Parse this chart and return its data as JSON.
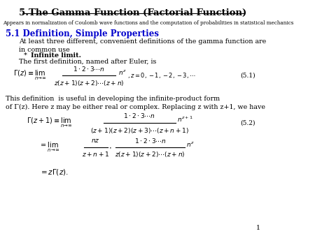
{
  "title": "5.The Gamma Function (Factorial Function)",
  "subtitle": "Appears in normalization of Coulomb wave functions and the computation of probabilities in statistical mechanics",
  "section": "5.1 Definition, Simple Properties",
  "para1": "At least three different, convenient definitions of the gamma function are\nin common use",
  "bullet_star": "*  ",
  "bullet_text": "Infinite limit.",
  "para2": "The first definition, named after Euler, is",
  "eq1_label": "(5.1)",
  "eq2_label": "(5.2)",
  "para3": "This definition  is useful in developing the infinite-product form\nof Γ(z). Here z may be either real or complex. Replacing z with z+1, we have",
  "page_num": "1",
  "bg_color": "#ffffff",
  "title_color": "#000000",
  "section_color": "#0000cc",
  "text_color": "#000000"
}
